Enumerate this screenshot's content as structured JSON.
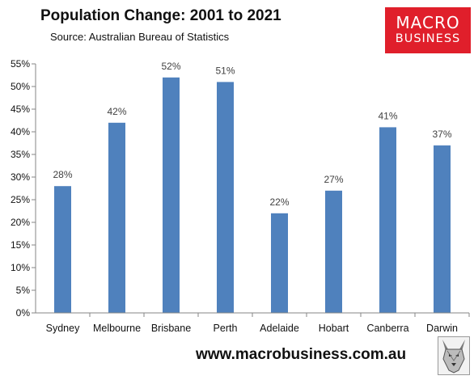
{
  "header": {
    "title": "Population Change: 2001 to 2021",
    "source": "Source: Australian Bureau of Statistics"
  },
  "logo": {
    "line1": "MACRO",
    "line2": "BUSINESS",
    "color": "#e01f2b"
  },
  "footer": {
    "url": "www.macrobusiness.com.au"
  },
  "chart_data": {
    "type": "bar",
    "title": "Population Change: 2001 to 2021",
    "subtitle": "Source: Australian Bureau of Statistics",
    "categories": [
      "Sydney",
      "Melbourne",
      "Brisbane",
      "Perth",
      "Adelaide",
      "Hobart",
      "Canberra",
      "Darwin"
    ],
    "values": [
      28,
      42,
      52,
      51,
      22,
      27,
      41,
      37
    ],
    "value_labels": [
      "28%",
      "42%",
      "52%",
      "51%",
      "22%",
      "27%",
      "41%",
      "37%"
    ],
    "ylim": [
      0,
      55
    ],
    "yticks": [
      0,
      5,
      10,
      15,
      20,
      25,
      30,
      35,
      40,
      45,
      50,
      55
    ],
    "ytick_labels": [
      "0%",
      "5%",
      "10%",
      "15%",
      "20%",
      "25%",
      "30%",
      "35%",
      "40%",
      "45%",
      "50%",
      "55%"
    ],
    "xlabel": "",
    "ylabel": "",
    "grid": false,
    "bar_color": "#4f81bd",
    "legend": "none"
  }
}
